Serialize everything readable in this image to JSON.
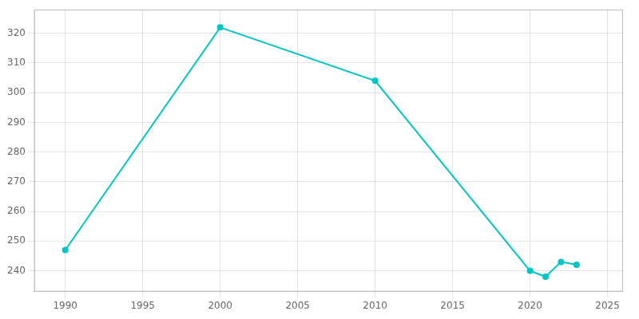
{
  "chart_data": {
    "type": "line",
    "x": [
      1990,
      2000,
      2010,
      2020,
      2021,
      2022,
      2023
    ],
    "values": [
      247,
      322,
      304,
      240,
      238,
      243,
      242
    ],
    "color": "#00C5C5",
    "marker": "circle",
    "xlim": [
      1988,
      2026
    ],
    "ylim": [
      233,
      328
    ],
    "xticks": [
      1990,
      1995,
      2000,
      2005,
      2010,
      2015,
      2020,
      2025
    ],
    "yticks": [
      240,
      250,
      260,
      270,
      280,
      290,
      300,
      310,
      320
    ],
    "grid": true
  }
}
